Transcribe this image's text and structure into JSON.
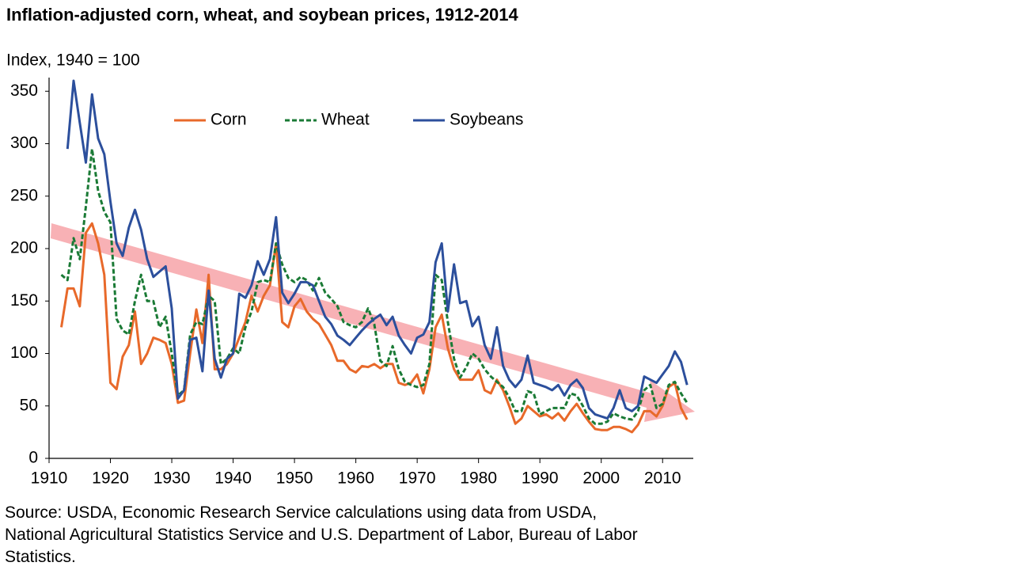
{
  "chart_data": {
    "type": "line",
    "title": "Inflation-adjusted corn, wheat, and soybean prices, 1912-2014",
    "y_label": "Index, 1940 = 100",
    "source": "Source: USDA, Economic Research Service calculations using data from USDA, National Agricultural Statistics Service and U.S. Department of Labor, Bureau of Labor Statistics.",
    "x": [
      1912,
      1913,
      1914,
      1915,
      1916,
      1917,
      1918,
      1919,
      1920,
      1921,
      1922,
      1923,
      1924,
      1925,
      1926,
      1927,
      1928,
      1929,
      1930,
      1931,
      1932,
      1933,
      1934,
      1935,
      1936,
      1937,
      1938,
      1939,
      1940,
      1941,
      1942,
      1943,
      1944,
      1945,
      1946,
      1947,
      1948,
      1949,
      1950,
      1951,
      1952,
      1953,
      1954,
      1955,
      1956,
      1957,
      1958,
      1959,
      1960,
      1961,
      1962,
      1963,
      1964,
      1965,
      1966,
      1967,
      1968,
      1969,
      1970,
      1971,
      1972,
      1973,
      1974,
      1975,
      1976,
      1977,
      1978,
      1979,
      1980,
      1981,
      1982,
      1983,
      1984,
      1985,
      1986,
      1987,
      1988,
      1989,
      1990,
      1991,
      1992,
      1993,
      1994,
      1995,
      1996,
      1997,
      1998,
      1999,
      2000,
      2001,
      2002,
      2003,
      2004,
      2005,
      2006,
      2007,
      2008,
      2009,
      2010,
      2011,
      2012,
      2013,
      2014
    ],
    "series": [
      {
        "name": "Corn",
        "color": "#e8692a",
        "dash": false,
        "values": [
          125,
          162,
          162,
          145,
          215,
          224,
          205,
          175,
          72,
          66,
          97,
          108,
          140,
          90,
          100,
          115,
          113,
          110,
          90,
          53,
          55,
          100,
          142,
          110,
          175,
          85,
          85,
          90,
          100,
          115,
          130,
          155,
          140,
          155,
          165,
          205,
          130,
          125,
          145,
          152,
          140,
          133,
          128,
          118,
          108,
          93,
          93,
          85,
          82,
          88,
          87,
          90,
          86,
          90,
          90,
          72,
          70,
          72,
          80,
          62,
          85,
          125,
          137,
          105,
          85,
          75,
          75,
          75,
          84,
          65,
          62,
          75,
          65,
          50,
          33,
          38,
          50,
          45,
          40,
          42,
          38,
          43,
          36,
          45,
          52,
          43,
          35,
          28,
          27,
          27,
          30,
          30,
          28,
          25,
          32,
          45,
          45,
          40,
          50,
          68,
          72,
          48,
          37
        ]
      },
      {
        "name": "Wheat",
        "color": "#1a7a35",
        "dash": true,
        "values": [
          175,
          170,
          210,
          190,
          240,
          295,
          255,
          235,
          225,
          133,
          122,
          118,
          150,
          175,
          150,
          150,
          125,
          135,
          100,
          60,
          65,
          118,
          130,
          128,
          155,
          150,
          90,
          95,
          105,
          100,
          125,
          140,
          168,
          170,
          168,
          205,
          185,
          172,
          168,
          173,
          170,
          160,
          172,
          158,
          152,
          145,
          130,
          127,
          125,
          130,
          143,
          128,
          93,
          88,
          107,
          85,
          73,
          70,
          68,
          70,
          90,
          175,
          170,
          130,
          95,
          77,
          87,
          100,
          95,
          85,
          78,
          73,
          68,
          58,
          45,
          45,
          64,
          62,
          42,
          45,
          48,
          48,
          48,
          62,
          60,
          50,
          38,
          33,
          33,
          35,
          43,
          40,
          38,
          37,
          45,
          65,
          70,
          48,
          52,
          70,
          73,
          62,
          53
        ]
      },
      {
        "name": "Soybeans",
        "color": "#2c4f9c",
        "dash": false,
        "values": [
          null,
          295,
          360,
          320,
          282,
          347,
          305,
          290,
          245,
          205,
          193,
          220,
          237,
          218,
          190,
          173,
          178,
          183,
          143,
          57,
          65,
          113,
          115,
          83,
          160,
          95,
          77,
          95,
          100,
          157,
          153,
          165,
          188,
          175,
          190,
          230,
          158,
          148,
          157,
          168,
          168,
          165,
          150,
          135,
          128,
          117,
          113,
          108,
          115,
          122,
          128,
          133,
          137,
          127,
          135,
          117,
          108,
          100,
          115,
          118,
          130,
          187,
          205,
          140,
          185,
          148,
          150,
          126,
          135,
          108,
          95,
          125,
          88,
          75,
          68,
          75,
          98,
          72,
          70,
          68,
          65,
          70,
          60,
          70,
          75,
          67,
          48,
          42,
          40,
          38,
          48,
          65,
          48,
          45,
          50,
          78,
          75,
          72,
          80,
          88,
          102,
          92,
          70
        ]
      }
    ],
    "xlim": [
      1910,
      2015
    ],
    "xticks": [
      1910,
      1920,
      1930,
      1940,
      1950,
      1960,
      1970,
      1980,
      1990,
      2000,
      2010
    ],
    "ylim": [
      0,
      360
    ],
    "yticks": [
      0,
      50,
      100,
      150,
      200,
      250,
      300,
      350
    ],
    "grid": false
  }
}
